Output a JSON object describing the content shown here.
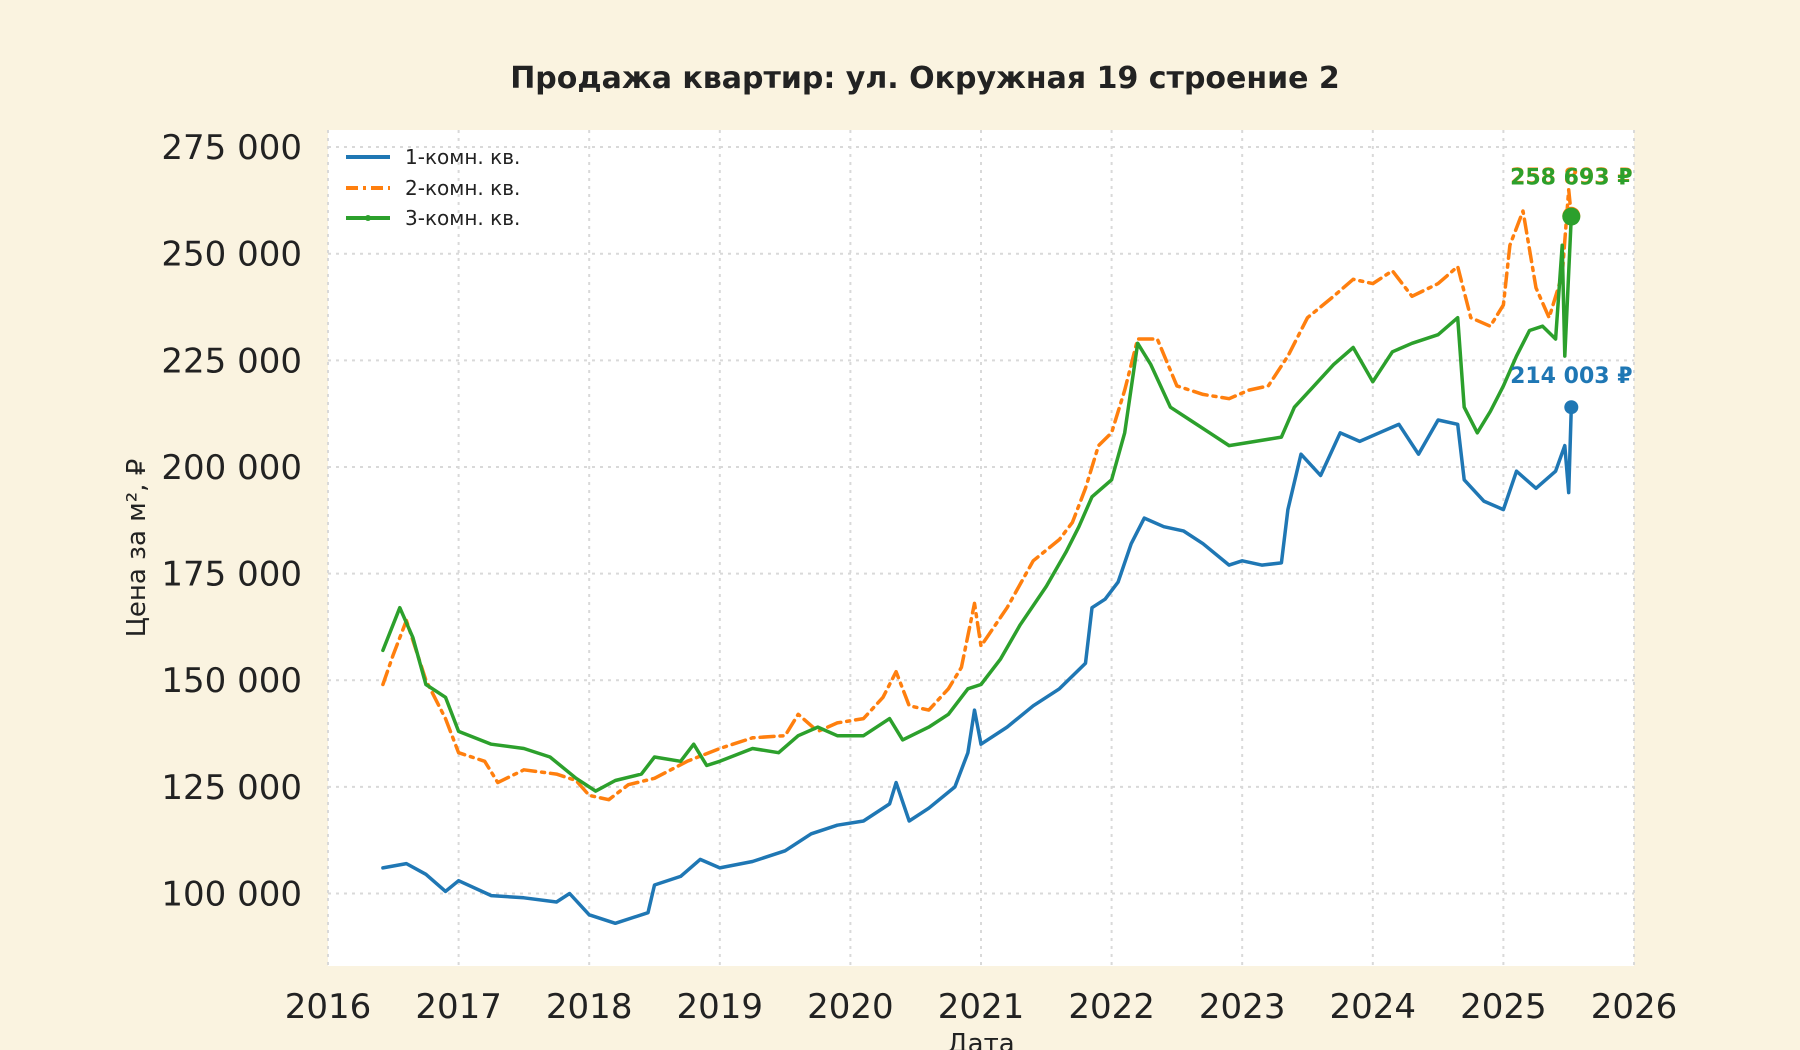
{
  "chart_data": {
    "type": "line",
    "title": "Продажа квартир: ул. Окружная 19 строение 2",
    "xlabel": "Дата",
    "ylabel": "Цена за м², ₽",
    "xlim": [
      2016,
      2026
    ],
    "ylim": [
      83000,
      279000
    ],
    "x_ticks": [
      "2016",
      "2017",
      "2018",
      "2019",
      "2020",
      "2021",
      "2022",
      "2023",
      "2024",
      "2025",
      "2026"
    ],
    "y_ticks": [
      "100 000",
      "125 000",
      "150 000",
      "175 000",
      "200 000",
      "225 000",
      "250 000",
      "275 000"
    ],
    "grid": true,
    "legend_position": "top-left",
    "series": [
      {
        "name": "1-комн. кв.",
        "color": "#1f77b4",
        "style": "solid",
        "end_label": "214 003 ₽",
        "points": [
          [
            2016.42,
            106000
          ],
          [
            2016.6,
            107000
          ],
          [
            2016.75,
            104500
          ],
          [
            2016.9,
            100500
          ],
          [
            2017.0,
            103000
          ],
          [
            2017.25,
            99500
          ],
          [
            2017.5,
            99000
          ],
          [
            2017.75,
            98000
          ],
          [
            2017.85,
            100000
          ],
          [
            2018.0,
            95000
          ],
          [
            2018.2,
            93000
          ],
          [
            2018.45,
            95500
          ],
          [
            2018.5,
            102000
          ],
          [
            2018.7,
            104000
          ],
          [
            2018.85,
            108000
          ],
          [
            2019.0,
            106000
          ],
          [
            2019.25,
            107500
          ],
          [
            2019.5,
            110000
          ],
          [
            2019.7,
            114000
          ],
          [
            2019.9,
            116000
          ],
          [
            2020.1,
            117000
          ],
          [
            2020.3,
            121000
          ],
          [
            2020.35,
            126000
          ],
          [
            2020.45,
            117000
          ],
          [
            2020.6,
            120000
          ],
          [
            2020.8,
            125000
          ],
          [
            2020.9,
            133000
          ],
          [
            2020.95,
            143000
          ],
          [
            2021.0,
            135000
          ],
          [
            2021.2,
            139000
          ],
          [
            2021.4,
            144000
          ],
          [
            2021.6,
            148000
          ],
          [
            2021.8,
            154000
          ],
          [
            2021.85,
            167000
          ],
          [
            2021.95,
            169000
          ],
          [
            2022.05,
            173000
          ],
          [
            2022.15,
            182000
          ],
          [
            2022.25,
            188000
          ],
          [
            2022.4,
            186000
          ],
          [
            2022.55,
            185000
          ],
          [
            2022.7,
            182000
          ],
          [
            2022.9,
            177000
          ],
          [
            2023.0,
            178000
          ],
          [
            2023.15,
            177000
          ],
          [
            2023.3,
            177500
          ],
          [
            2023.35,
            190000
          ],
          [
            2023.45,
            203000
          ],
          [
            2023.6,
            198000
          ],
          [
            2023.75,
            208000
          ],
          [
            2023.9,
            206000
          ],
          [
            2024.05,
            208000
          ],
          [
            2024.2,
            210000
          ],
          [
            2024.35,
            203000
          ],
          [
            2024.5,
            211000
          ],
          [
            2024.65,
            210000
          ],
          [
            2024.7,
            197000
          ],
          [
            2024.85,
            192000
          ],
          [
            2025.0,
            190000
          ],
          [
            2025.1,
            199000
          ],
          [
            2025.25,
            195000
          ],
          [
            2025.4,
            199000
          ],
          [
            2025.47,
            205000
          ],
          [
            2025.5,
            194000
          ],
          [
            2025.52,
            214003
          ]
        ]
      },
      {
        "name": "2-комн. кв.",
        "color": "#ff7f0e",
        "style": "dashdot",
        "end_label": "258 893 ₽",
        "points": [
          [
            2016.42,
            149000
          ],
          [
            2016.5,
            156000
          ],
          [
            2016.6,
            164000
          ],
          [
            2016.75,
            150000
          ],
          [
            2016.9,
            141000
          ],
          [
            2017.0,
            133000
          ],
          [
            2017.2,
            131000
          ],
          [
            2017.3,
            126000
          ],
          [
            2017.5,
            129000
          ],
          [
            2017.75,
            128000
          ],
          [
            2017.9,
            126500
          ],
          [
            2018.0,
            123000
          ],
          [
            2018.15,
            122000
          ],
          [
            2018.3,
            125500
          ],
          [
            2018.5,
            127000
          ],
          [
            2018.75,
            131000
          ],
          [
            2019.0,
            134000
          ],
          [
            2019.25,
            136500
          ],
          [
            2019.5,
            137000
          ],
          [
            2019.6,
            142000
          ],
          [
            2019.75,
            138000
          ],
          [
            2019.9,
            140000
          ],
          [
            2020.1,
            141000
          ],
          [
            2020.25,
            146000
          ],
          [
            2020.35,
            152000
          ],
          [
            2020.45,
            144000
          ],
          [
            2020.6,
            143000
          ],
          [
            2020.75,
            148000
          ],
          [
            2020.85,
            153000
          ],
          [
            2020.95,
            168000
          ],
          [
            2021.0,
            158000
          ],
          [
            2021.2,
            167000
          ],
          [
            2021.4,
            178000
          ],
          [
            2021.6,
            183000
          ],
          [
            2021.7,
            187000
          ],
          [
            2021.8,
            195000
          ],
          [
            2021.9,
            205000
          ],
          [
            2022.0,
            208000
          ],
          [
            2022.1,
            218000
          ],
          [
            2022.2,
            230000
          ],
          [
            2022.35,
            230000
          ],
          [
            2022.5,
            219000
          ],
          [
            2022.7,
            217000
          ],
          [
            2022.9,
            216000
          ],
          [
            2023.05,
            218000
          ],
          [
            2023.2,
            219000
          ],
          [
            2023.35,
            226000
          ],
          [
            2023.5,
            235000
          ],
          [
            2023.7,
            240000
          ],
          [
            2023.85,
            244000
          ],
          [
            2024.0,
            243000
          ],
          [
            2024.15,
            246000
          ],
          [
            2024.3,
            240000
          ],
          [
            2024.5,
            243000
          ],
          [
            2024.65,
            247000
          ],
          [
            2024.75,
            235000
          ],
          [
            2024.9,
            233000
          ],
          [
            2025.0,
            238000
          ],
          [
            2025.05,
            252000
          ],
          [
            2025.15,
            260000
          ],
          [
            2025.25,
            242000
          ],
          [
            2025.35,
            235000
          ],
          [
            2025.45,
            245000
          ],
          [
            2025.5,
            265000
          ],
          [
            2025.52,
            258893
          ]
        ]
      },
      {
        "name": "3-комн. кв.",
        "color": "#2ca02c",
        "style": "solid",
        "end_label": "258 693 ₽",
        "points": [
          [
            2016.42,
            157000
          ],
          [
            2016.55,
            167000
          ],
          [
            2016.65,
            160000
          ],
          [
            2016.75,
            149000
          ],
          [
            2016.9,
            146000
          ],
          [
            2017.0,
            138000
          ],
          [
            2017.25,
            135000
          ],
          [
            2017.5,
            134000
          ],
          [
            2017.7,
            132000
          ],
          [
            2017.9,
            127000
          ],
          [
            2018.05,
            124000
          ],
          [
            2018.2,
            126500
          ],
          [
            2018.4,
            128000
          ],
          [
            2018.5,
            132000
          ],
          [
            2018.7,
            131000
          ],
          [
            2018.8,
            135000
          ],
          [
            2018.9,
            130000
          ],
          [
            2019.0,
            131000
          ],
          [
            2019.25,
            134000
          ],
          [
            2019.45,
            133000
          ],
          [
            2019.6,
            137000
          ],
          [
            2019.75,
            139000
          ],
          [
            2019.9,
            137000
          ],
          [
            2020.1,
            137000
          ],
          [
            2020.3,
            141000
          ],
          [
            2020.4,
            136000
          ],
          [
            2020.6,
            139000
          ],
          [
            2020.75,
            142000
          ],
          [
            2020.9,
            148000
          ],
          [
            2021.0,
            149000
          ],
          [
            2021.15,
            155000
          ],
          [
            2021.3,
            163000
          ],
          [
            2021.5,
            172000
          ],
          [
            2021.65,
            180000
          ],
          [
            2021.75,
            186000
          ],
          [
            2021.85,
            193000
          ],
          [
            2022.0,
            197000
          ],
          [
            2022.1,
            208000
          ],
          [
            2022.2,
            229000
          ],
          [
            2022.3,
            224000
          ],
          [
            2022.45,
            214000
          ],
          [
            2022.6,
            211000
          ],
          [
            2022.75,
            208000
          ],
          [
            2022.9,
            205000
          ],
          [
            2023.1,
            206000
          ],
          [
            2023.3,
            207000
          ],
          [
            2023.4,
            214000
          ],
          [
            2023.55,
            219000
          ],
          [
            2023.7,
            224000
          ],
          [
            2023.85,
            228000
          ],
          [
            2024.0,
            220000
          ],
          [
            2024.15,
            227000
          ],
          [
            2024.3,
            229000
          ],
          [
            2024.5,
            231000
          ],
          [
            2024.65,
            235000
          ],
          [
            2024.7,
            214000
          ],
          [
            2024.8,
            208000
          ],
          [
            2024.9,
            213000
          ],
          [
            2025.0,
            219000
          ],
          [
            2025.1,
            226000
          ],
          [
            2025.2,
            232000
          ],
          [
            2025.3,
            233000
          ],
          [
            2025.4,
            230000
          ],
          [
            2025.45,
            252000
          ],
          [
            2025.47,
            226000
          ],
          [
            2025.52,
            258693
          ]
        ]
      }
    ]
  }
}
